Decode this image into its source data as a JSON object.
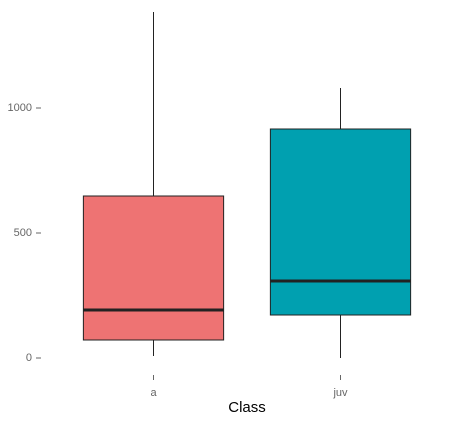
{
  "chart_data": {
    "type": "box",
    "x_label": "Class",
    "categories": [
      "a",
      "juv"
    ],
    "colors": [
      "#ee7373",
      "#00a0b0"
    ],
    "min": [
      8,
      0
    ],
    "q1": [
      72,
      172
    ],
    "median": [
      192,
      308
    ],
    "q3": [
      648,
      916
    ],
    "max": [
      1384,
      1080
    ],
    "ylim": [
      -50,
      1400
    ],
    "yticks": [
      0,
      500,
      1000
    ],
    "grid": false
  }
}
